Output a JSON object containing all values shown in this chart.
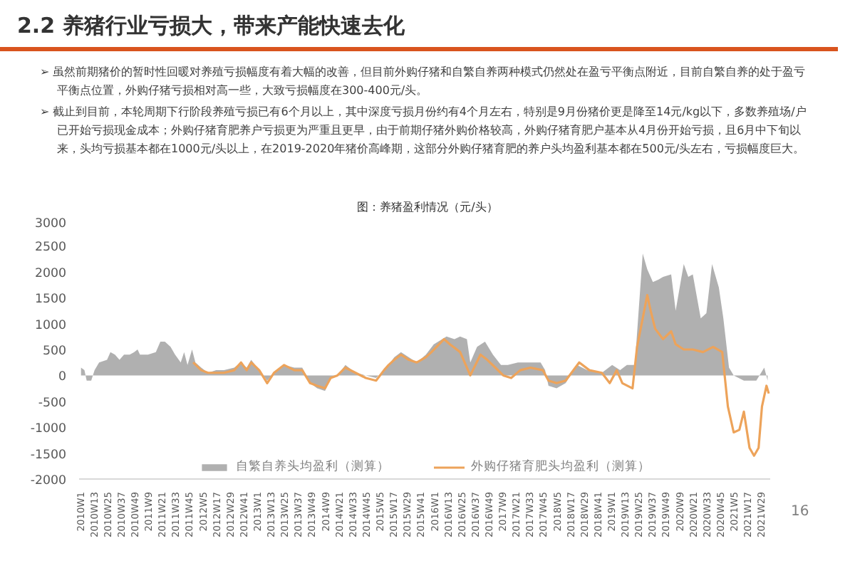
{
  "chart_data": {
    "type": "area",
    "title": "图：养猪盈利情况（元/头）",
    "annotations": [
      "2.2 养猪行业亏损大，带来产能快速去化",
      "➢ 虽然前期猪价的暂时性回暖对养殖亏损幅度有着大幅的改善，但目前外购仔猪和自繁自养两种模式仍然处在盈亏平衡点附近，目前自繁自养的处于盈亏平衡点位置，外购仔猪亏损相对高一些，大致亏损幅度在300-400元/头。",
      "➢ 截止到目前，本轮周期下行阶段养殖亏损已有6个月以上，其中深度亏损月份约有4个月左右，特别是9月份猪价更是降至14元/kg以下，多数养殖场/户已开始亏损现金成本；外购仔猪育肥养户亏损更为严重且更早，由于前期仔猪外购价格较高，外购仔猪育肥户基本从4月份开始亏损，且6月中下旬以来，头均亏损基本都在1000元/头以上，在2019-2020年猪价高峰期，这部分外购仔猪育肥的养户头均盈利基本都在500元/头左右，亏损幅度巨大。",
      "16"
    ],
    "series": [
      {
        "name": "自繁自养头均盈利（测算）",
        "color": "#b0b0b0",
        "x": [
          "2010-01-01",
          "2010-01-22",
          "2010-02-05",
          "2010-03-05",
          "2010-03-26",
          "2010-04-23",
          "2010-06-11",
          "2010-07-02",
          "2010-07-30",
          "2010-08-27",
          "2010-09-24",
          "2010-10-29",
          "2010-11-26",
          "2010-12-17",
          "2011-01-01",
          "2011-02-19",
          "2011-04-09",
          "2011-05-07",
          "2011-06-04",
          "2011-07-09",
          "2011-08-06",
          "2011-09-10",
          "2011-10-01",
          "2011-10-22",
          "2011-11-19",
          "2011-12-10",
          "2012-01-15",
          "2012-02-26",
          "2012-04-16",
          "2012-06-04",
          "2012-08-06",
          "2012-09-17",
          "2012-10-22",
          "2012-11-19",
          "2013-01-08",
          "2013-02-26",
          "2013-04-09",
          "2013-06-11",
          "2013-08-13",
          "2013-10-01",
          "2013-11-19",
          "2014-01-01",
          "2014-02-19",
          "2014-03-26",
          "2014-05-07",
          "2014-06-25",
          "2014-08-27",
          "2014-10-29",
          "2015-01-01",
          "2015-02-19",
          "2015-03-19",
          "2015-04-23",
          "2015-06-04",
          "2015-07-23",
          "2015-09-10",
          "2015-11-05",
          "2015-12-24",
          "2016-03-12",
          "2016-04-30",
          "2016-06-04",
          "2016-07-16",
          "2016-08-06",
          "2016-09-17",
          "2016-11-05",
          "2016-12-24",
          "2017-02-12",
          "2017-03-26",
          "2017-05-28",
          "2017-07-30",
          "2017-10-15",
          "2017-11-12",
          "2017-12-03",
          "2018-01-22",
          "2018-03-19",
          "2018-05-28",
          "2018-07-30",
          "2018-10-29",
          "2019-01-01",
          "2019-02-19",
          "2019-04-02",
          "2019-05-21",
          "2019-07-09",
          "2019-08-06",
          "2019-09-10",
          "2019-10-15",
          "2019-11-12",
          "2020-01-01",
          "2020-01-29",
          "2020-03-05",
          "2020-03-19",
          "2020-04-16",
          "2020-05-14",
          "2020-07-02",
          "2020-08-06",
          "2020-09-10",
          "2020-10-22",
          "2020-11-19",
          "2020-12-24",
          "2021-01-22",
          "2021-03-26",
          "2021-06-11",
          "2021-07-30",
          "2021-08-20"
        ],
        "values": [
          150,
          100,
          -100,
          -100,
          100,
          250,
          300,
          450,
          400,
          300,
          400,
          400,
          450,
          500,
          400,
          400,
          450,
          650,
          650,
          550,
          400,
          250,
          450,
          200,
          500,
          250,
          150,
          50,
          100,
          100,
          150,
          250,
          150,
          300,
          100,
          -100,
          50,
          200,
          150,
          150,
          -150,
          -250,
          -300,
          -50,
          0,
          200,
          50,
          0,
          -50,
          100,
          200,
          350,
          450,
          350,
          250,
          400,
          600,
          750,
          700,
          750,
          700,
          250,
          550,
          650,
          400,
          200,
          200,
          250,
          250,
          250,
          100,
          -200,
          -250,
          -150,
          200,
          100,
          50,
          200,
          100,
          200,
          200,
          2350,
          2050,
          1800,
          1850,
          1900,
          1950,
          1250,
          1900,
          2150,
          1900,
          1950,
          1100,
          1200,
          2150,
          1700,
          1100,
          150,
          0,
          -100,
          -100,
          150,
          -100
        ]
      },
      {
        "name": "外购仔猪育肥头均盈利（测算）",
        "type": "line",
        "color": "#eda35a",
        "x": [
          "2011-11-26",
          "2012-01-15",
          "2012-02-26",
          "2012-04-16",
          "2012-06-04",
          "2012-08-06",
          "2012-09-17",
          "2012-10-22",
          "2012-11-19",
          "2013-01-08",
          "2013-02-26",
          "2013-04-09",
          "2013-06-11",
          "2013-08-13",
          "2013-10-01",
          "2013-11-19",
          "2014-01-01",
          "2014-02-19",
          "2014-03-26",
          "2014-05-07",
          "2014-06-25",
          "2014-08-27",
          "2014-10-29",
          "2015-01-01",
          "2015-02-19",
          "2015-03-19",
          "2015-04-23",
          "2015-06-04",
          "2015-07-23",
          "2015-09-10",
          "2015-11-05",
          "2015-12-10",
          "2016-02-26",
          "2016-04-02",
          "2016-06-04",
          "2016-08-06",
          "2016-10-08",
          "2016-11-19",
          "2017-01-08",
          "2017-02-26",
          "2017-04-16",
          "2017-06-11",
          "2017-08-13",
          "2017-10-29",
          "2017-12-03",
          "2018-01-22",
          "2018-03-19",
          "2018-06-11",
          "2018-08-13",
          "2018-10-29",
          "2018-12-17",
          "2019-01-29",
          "2019-03-05",
          "2019-05-07",
          "2019-06-04",
          "2019-07-09",
          "2019-08-06",
          "2019-08-27",
          "2019-09-24",
          "2019-11-12",
          "2020-01-01",
          "2020-01-29",
          "2020-03-19",
          "2020-05-14",
          "2020-07-16",
          "2020-09-17",
          "2020-11-12",
          "2020-12-17",
          "2021-01-22",
          "2021-02-26",
          "2021-03-26",
          "2021-04-30",
          "2021-05-28",
          "2021-06-25",
          "2021-07-16",
          "2021-08-13",
          "2021-08-27"
        ],
        "values": [
          250,
          100,
          50,
          50,
          50,
          100,
          250,
          100,
          250,
          100,
          -150,
          50,
          200,
          100,
          100,
          -150,
          -200,
          -250,
          -50,
          0,
          150,
          50,
          -50,
          -100,
          100,
          200,
          300,
          400,
          300,
          250,
          350,
          450,
          700,
          600,
          450,
          0,
          400,
          300,
          150,
          0,
          -50,
          100,
          150,
          100,
          -100,
          -150,
          -100,
          250,
          100,
          50,
          -150,
          100,
          -150,
          -250,
          550,
          1100,
          1550,
          1250,
          900,
          700,
          850,
          600,
          500,
          500,
          450,
          550,
          450,
          -600,
          -1100,
          -1050,
          -700,
          -1400,
          -1550,
          -1400,
          -600,
          -200,
          -350
        ]
      }
    ],
    "xlim": [
      "2009-12-20",
      "2021-09-05"
    ],
    "xticks": [
      {
        "value": "2010-01-01",
        "label": "2010W1"
      },
      {
        "value": "2010-03-26",
        "label": "2010W13"
      },
      {
        "value": "2010-06-18",
        "label": "2010W25"
      },
      {
        "value": "2010-09-10",
        "label": "2010W37"
      },
      {
        "value": "2010-12-03",
        "label": "2010W49"
      },
      {
        "value": "2011-02-26",
        "label": "2011W9"
      },
      {
        "value": "2011-05-21",
        "label": "2011W21"
      },
      {
        "value": "2011-08-13",
        "label": "2011W33"
      },
      {
        "value": "2011-11-05",
        "label": "2011W45"
      },
      {
        "value": "2012-01-29",
        "label": "2012W5"
      },
      {
        "value": "2012-04-23",
        "label": "2012W17"
      },
      {
        "value": "2012-07-16",
        "label": "2012W29"
      },
      {
        "value": "2012-10-08",
        "label": "2012W41"
      },
      {
        "value": "2013-01-01",
        "label": "2013W1"
      },
      {
        "value": "2013-03-26",
        "label": "2013W13"
      },
      {
        "value": "2013-06-18",
        "label": "2013W25"
      },
      {
        "value": "2013-09-10",
        "label": "2013W37"
      },
      {
        "value": "2013-12-03",
        "label": "2013W49"
      },
      {
        "value": "2014-02-26",
        "label": "2014W9"
      },
      {
        "value": "2014-05-21",
        "label": "2014W21"
      },
      {
        "value": "2014-08-13",
        "label": "2014W33"
      },
      {
        "value": "2014-11-05",
        "label": "2014W45"
      },
      {
        "value": "2015-01-29",
        "label": "2015W5"
      },
      {
        "value": "2015-04-23",
        "label": "2015W17"
      },
      {
        "value": "2015-07-16",
        "label": "2015W29"
      },
      {
        "value": "2015-10-08",
        "label": "2015W41"
      },
      {
        "value": "2016-01-01",
        "label": "2016W1"
      },
      {
        "value": "2016-03-26",
        "label": "2016W13"
      },
      {
        "value": "2016-06-18",
        "label": "2016W25"
      },
      {
        "value": "2016-09-10",
        "label": "2016W37"
      },
      {
        "value": "2016-12-03",
        "label": "2016W49"
      },
      {
        "value": "2017-02-26",
        "label": "2017W9"
      },
      {
        "value": "2017-05-21",
        "label": "2017W21"
      },
      {
        "value": "2017-08-13",
        "label": "2017W33"
      },
      {
        "value": "2017-11-05",
        "label": "2017W45"
      },
      {
        "value": "2018-01-29",
        "label": "2018W5"
      },
      {
        "value": "2018-04-23",
        "label": "2018W17"
      },
      {
        "value": "2018-07-16",
        "label": "2018W29"
      },
      {
        "value": "2018-10-08",
        "label": "2018W41"
      },
      {
        "value": "2019-01-01",
        "label": "2019W1"
      },
      {
        "value": "2019-03-26",
        "label": "2019W13"
      },
      {
        "value": "2019-06-18",
        "label": "2019W25"
      },
      {
        "value": "2019-09-10",
        "label": "2019W37"
      },
      {
        "value": "2019-12-03",
        "label": "2019W49"
      },
      {
        "value": "2020-02-26",
        "label": "2020W9"
      },
      {
        "value": "2020-05-21",
        "label": "2020W21"
      },
      {
        "value": "2020-08-13",
        "label": "2020W33"
      },
      {
        "value": "2020-11-05",
        "label": "2020W45"
      },
      {
        "value": "2021-01-29",
        "label": "2021W5"
      },
      {
        "value": "2021-04-23",
        "label": "2021W17"
      },
      {
        "value": "2021-07-16",
        "label": "2021W29"
      }
    ],
    "ylim": [
      -2000,
      3000
    ],
    "yticks": [
      -2000,
      -1500,
      -1000,
      -500,
      0,
      500,
      1000,
      1500,
      2000,
      2500,
      3000
    ],
    "legend": "bottom"
  }
}
